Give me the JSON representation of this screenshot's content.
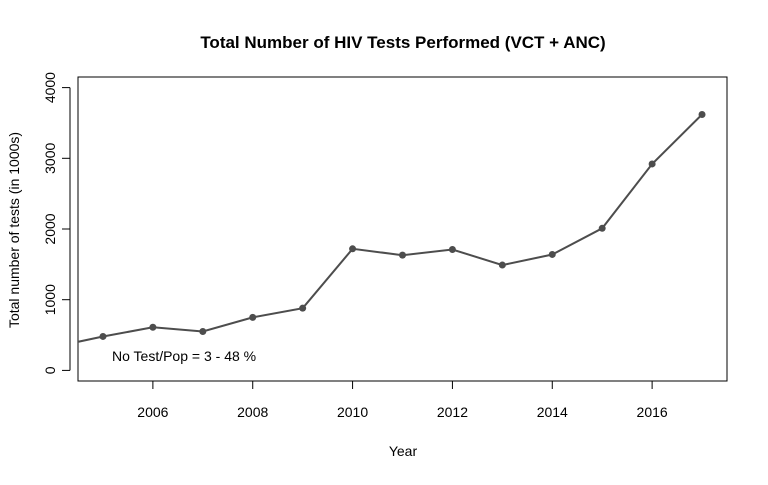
{
  "chart_data": {
    "type": "line",
    "title": "Total Number of HIV Tests Performed (VCT + ANC)",
    "xlabel": "Year",
    "ylabel": "Total number of tests (in 1000s)",
    "annotation": "No Test/Pop =  3 - 48 %",
    "xlim": [
      2004.5,
      2017.5
    ],
    "ylim": [
      -150,
      4150
    ],
    "x_ticks": [
      2006,
      2008,
      2010,
      2012,
      2014,
      2016
    ],
    "y_ticks": [
      0,
      1000,
      2000,
      3000,
      4000
    ],
    "series": [
      {
        "x": [
          2004,
          2005,
          2006,
          2007,
          2008,
          2009,
          2010,
          2011,
          2012,
          2013,
          2014,
          2015,
          2016,
          2017
        ],
        "y": [
          330,
          480,
          610,
          550,
          750,
          880,
          1720,
          1630,
          1710,
          1490,
          1640,
          2010,
          2920,
          3620
        ],
        "points_shown": [
          false,
          true,
          true,
          true,
          true,
          true,
          true,
          true,
          true,
          true,
          true,
          true,
          true,
          true
        ],
        "color": "#4d4d4d"
      }
    ],
    "grid": false,
    "legend": "none"
  }
}
